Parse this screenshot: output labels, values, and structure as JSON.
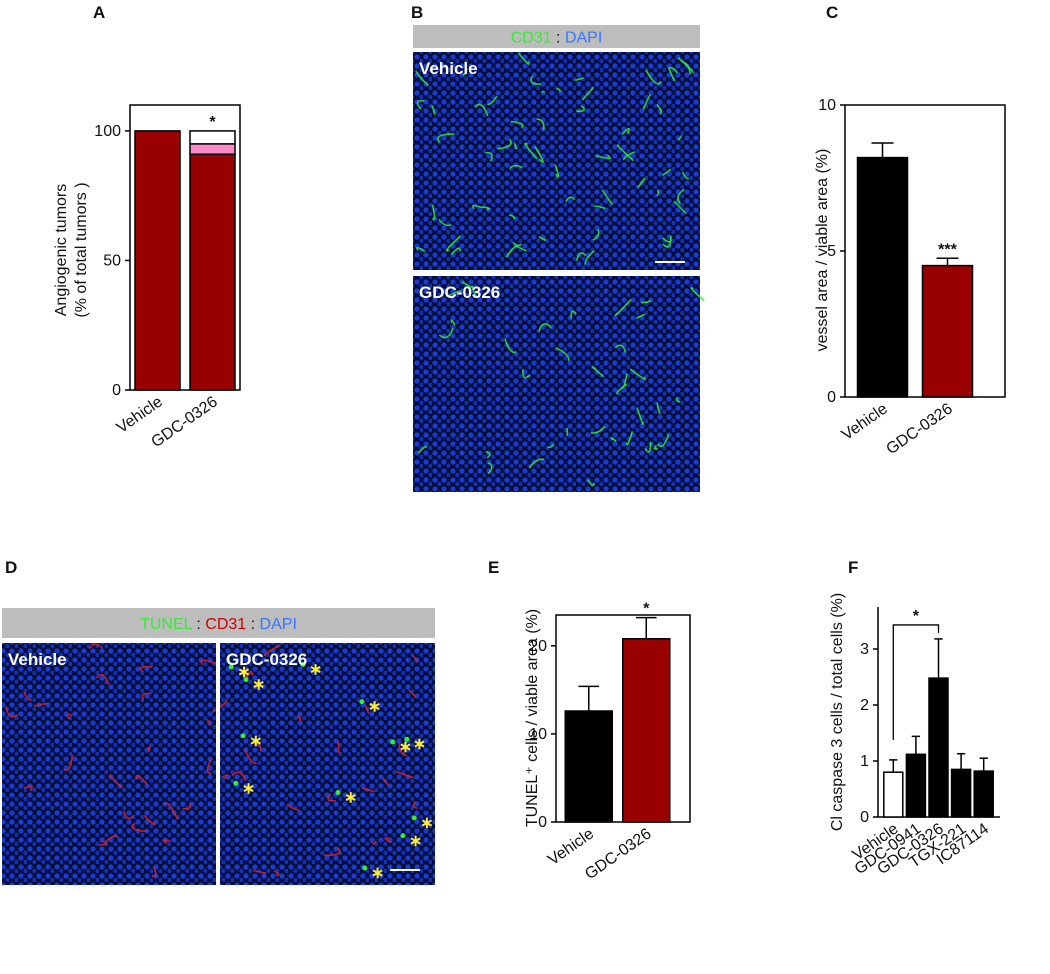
{
  "chart_data": [
    {
      "type": "stacked-bar",
      "panel": "A",
      "ylabel": [
        "Angiogenic tumors",
        "(% of total tumors )"
      ],
      "categories": [
        "Vehicle",
        "GDC-0326"
      ],
      "series": [
        {
          "color": "#990000",
          "values": [
            100,
            91
          ]
        },
        {
          "color": "#ff88c8",
          "values": [
            0,
            4
          ]
        },
        {
          "color": "#ffffff",
          "values": [
            0,
            5
          ]
        }
      ],
      "ylim": [
        0,
        110
      ],
      "yticks": [
        0,
        50,
        100
      ],
      "box": true,
      "annotations": [
        {
          "text": "*",
          "x": "GDC-0326"
        }
      ]
    },
    {
      "type": "bar",
      "panel": "C",
      "ylabel": [
        "vessel area / viable area (%)"
      ],
      "categories": [
        "Vehicle",
        "GDC-0326"
      ],
      "values": [
        8.2,
        4.5
      ],
      "errors": [
        0.5,
        0.25
      ],
      "colors": [
        "#000000",
        "#990000"
      ],
      "ylim": [
        0,
        10
      ],
      "yticks": [
        0,
        5,
        10
      ],
      "box": true,
      "annotations": [
        {
          "text": "***",
          "x": "GDC-0326"
        }
      ]
    },
    {
      "type": "bar",
      "panel": "E",
      "ylabel": [
        "TUNEL⁺ cells / viable area (%)"
      ],
      "categories": [
        "Vehicle",
        "GDC-0326"
      ],
      "values": [
        12.6,
        20.8
      ],
      "errors": [
        2.8,
        2.4
      ],
      "colors": [
        "#000000",
        "#990000"
      ],
      "ylim": [
        0,
        23.5
      ],
      "yticks": [
        0,
        10,
        20
      ],
      "box": true,
      "annotations": [
        {
          "text": "*",
          "x": "GDC-0326"
        }
      ]
    },
    {
      "type": "bar",
      "panel": "F",
      "ylabel": [
        "Cl caspase 3 cells / total cells (%)"
      ],
      "categories": [
        "Vehicle",
        "GDC-0941",
        "GDC-0326",
        "TGX-221",
        "IC87114"
      ],
      "values": [
        0.8,
        1.12,
        2.48,
        0.85,
        0.82
      ],
      "errors": [
        0.22,
        0.32,
        0.7,
        0.28,
        0.23
      ],
      "colors": [
        "#ffffff",
        "#000000",
        "#000000",
        "#000000",
        "#000000"
      ],
      "ylim": [
        0,
        3.75
      ],
      "yticks": [
        0,
        1,
        2,
        3
      ],
      "box": false,
      "annotations": [
        {
          "text": "*",
          "from": "Vehicle",
          "to": "GDC-0326"
        }
      ]
    }
  ],
  "micrographs": [
    {
      "panel": "B",
      "header": [
        {
          "text": "CD31",
          "color": "#33ee33"
        },
        {
          "text": " : ",
          "color": "#111111"
        },
        {
          "text": "DAPI",
          "color": "#3377ff"
        }
      ],
      "labels": [
        "Vehicle",
        "GDC-0326"
      ]
    },
    {
      "panel": "D",
      "header": [
        {
          "text": "TUNEL",
          "color": "#33ee33"
        },
        {
          "text": " : ",
          "color": "#111111"
        },
        {
          "text": "CD31",
          "color": "#cc0000"
        },
        {
          "text": " : ",
          "color": "#111111"
        },
        {
          "text": "DAPI",
          "color": "#3377ff"
        }
      ],
      "labels": [
        "Vehicle",
        "GDC-0326"
      ]
    }
  ]
}
